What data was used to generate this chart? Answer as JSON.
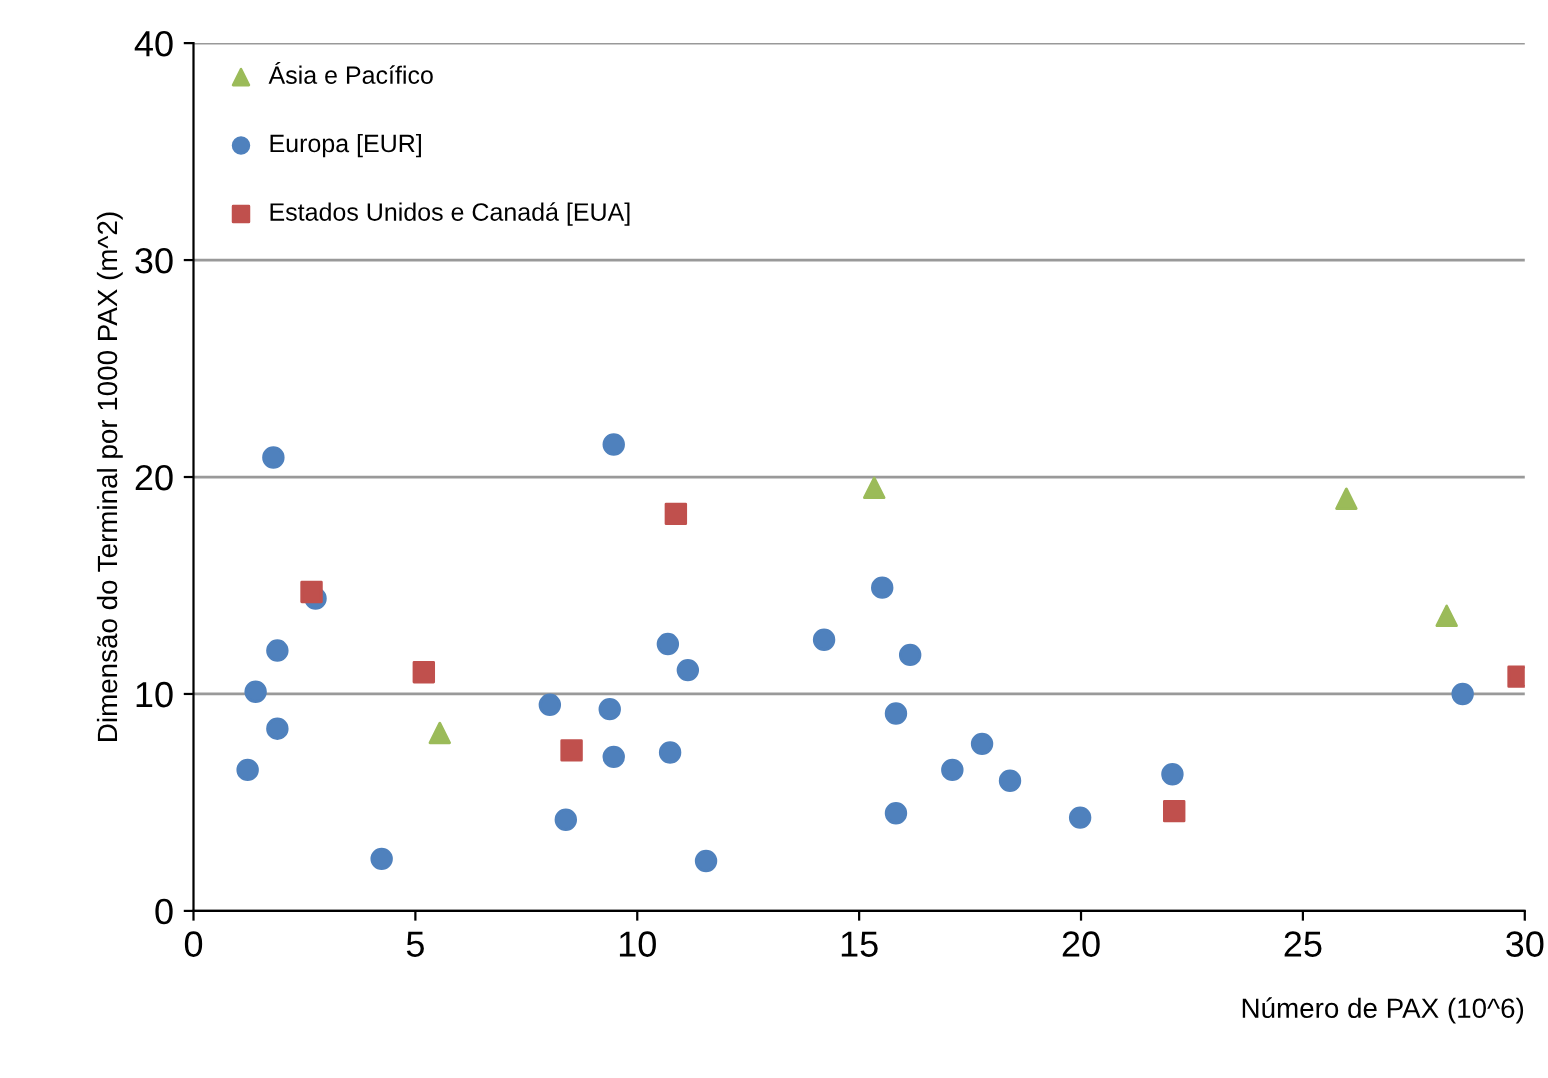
{
  "chart_data": {
    "type": "scatter",
    "xlabel": "Número de PAX (10^6)",
    "ylabel": "Dimensão do Terminal por 1000 PAX (m^2)",
    "xlim": [
      0,
      30
    ],
    "xticks": [
      0,
      5,
      10,
      15,
      20,
      25,
      30
    ],
    "ylim": [
      0,
      40
    ],
    "yticks": [
      0,
      10,
      20,
      30,
      40
    ],
    "grid": "y",
    "legend": "top left",
    "series": [
      {
        "name": "Ásia e Pacífico",
        "color": "#9bbb59",
        "marker": "triangle",
        "x": [
          5.55,
          15.34,
          25.98,
          28.24
        ],
        "values": [
          8.2,
          19.5,
          19.0,
          13.6
        ]
      },
      {
        "name": "Europa [EUR]",
        "color": "#4f81bd",
        "marker": "circle",
        "x": [
          1.22,
          1.4,
          1.8,
          1.89,
          1.89,
          2.75,
          4.24,
          8.03,
          8.39,
          9.38,
          9.47,
          9.47,
          10.69,
          10.74,
          11.14,
          11.55,
          14.21,
          15.52,
          15.83,
          15.83,
          16.15,
          17.1,
          17.77,
          18.4,
          19.98,
          22.06,
          28.6
        ],
        "values": [
          6.5,
          10.1,
          20.9,
          12.0,
          8.4,
          14.4,
          2.4,
          9.5,
          4.2,
          9.3,
          21.5,
          7.1,
          12.3,
          7.3,
          11.1,
          2.3,
          12.5,
          14.9,
          9.1,
          4.5,
          11.8,
          6.5,
          7.7,
          6.0,
          4.3,
          6.3,
          10.0
        ]
      },
      {
        "name": "Estados Unidos e Canadá [EUA]",
        "color": "#c0504d",
        "marker": "square",
        "x": [
          2.66,
          5.19,
          8.52,
          10.87,
          22.1,
          29.86
        ],
        "values": [
          14.7,
          11.0,
          7.4,
          18.3,
          4.6,
          10.8
        ]
      }
    ]
  }
}
